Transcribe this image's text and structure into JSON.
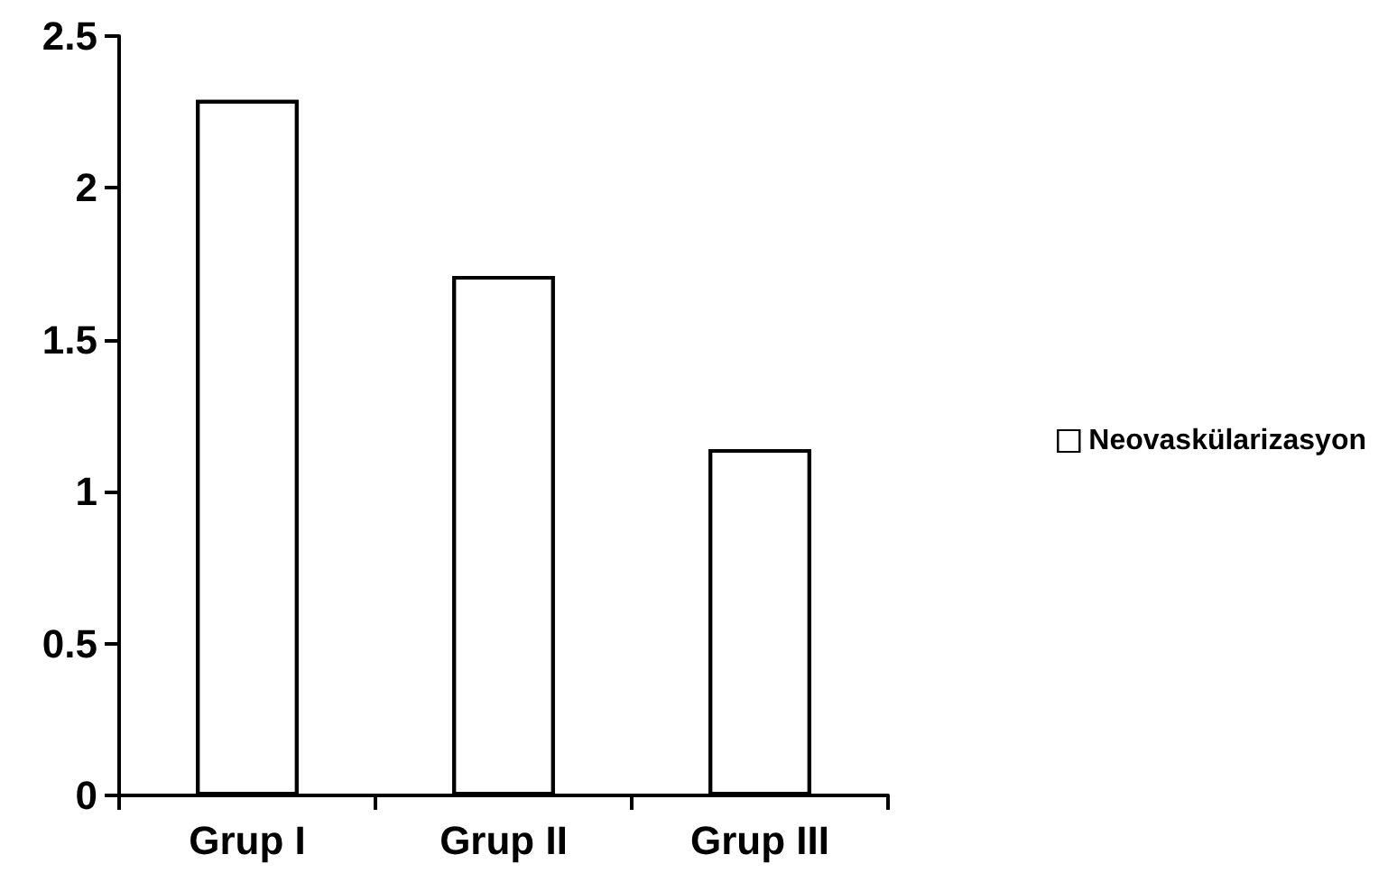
{
  "chart_data": {
    "type": "bar",
    "categories": [
      "Grup I",
      "Grup II",
      "Grup III"
    ],
    "series": [
      {
        "name": "Neovaskülarizasyon",
        "color": "#ffffff",
        "values": [
          2.29,
          1.71,
          1.14
        ]
      }
    ],
    "ylim": [
      0,
      2.5
    ],
    "yticks": [
      0,
      0.5,
      1,
      1.5,
      2,
      2.5
    ],
    "grid": false,
    "legend": "right"
  }
}
